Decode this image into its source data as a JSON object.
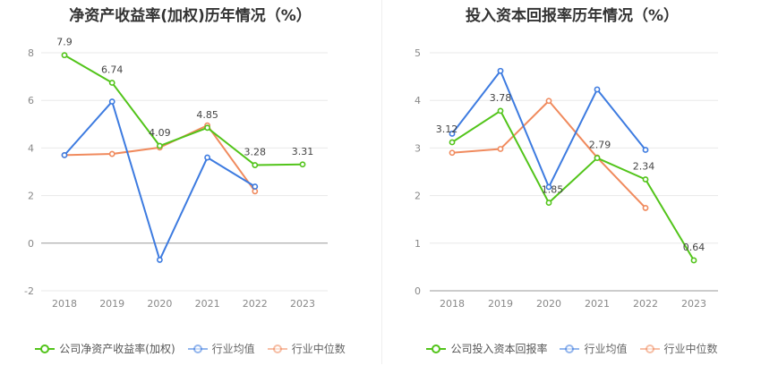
{
  "chart_data": [
    {
      "type": "line",
      "title": "净资产收益率(加权)历年情况（%）",
      "categories": [
        "2018",
        "2019",
        "2020",
        "2021",
        "2022",
        "2023"
      ],
      "ylim": [
        -2,
        8
      ],
      "yticks": [
        -2,
        0,
        2,
        4,
        6,
        8
      ],
      "grid": true,
      "legend": "bottom",
      "series": [
        {
          "name": "公司净资产收益率(加权)",
          "color": "#52c41a",
          "values": [
            7.9,
            6.74,
            4.09,
            4.85,
            3.28,
            3.31
          ],
          "labels": [
            "7.9",
            "6.74",
            "4.09",
            "4.85",
            "3.28",
            "3.31"
          ]
        },
        {
          "name": "行业均值",
          "color": "#3d7be0",
          "values": [
            3.7,
            5.95,
            -0.7,
            3.6,
            2.38,
            null
          ]
        },
        {
          "name": "行业中位数",
          "color": "#f08a5d",
          "values": [
            3.7,
            3.75,
            4.02,
            4.95,
            2.18,
            null
          ]
        }
      ]
    },
    {
      "type": "line",
      "title": "投入资本回报率历年情况（%）",
      "categories": [
        "2018",
        "2019",
        "2020",
        "2021",
        "2022",
        "2023"
      ],
      "ylim": [
        0,
        5
      ],
      "yticks": [
        0,
        1,
        2,
        3,
        4,
        5
      ],
      "grid": true,
      "legend": "bottom",
      "series": [
        {
          "name": "公司投入资本回报率",
          "color": "#52c41a",
          "values": [
            3.12,
            3.78,
            1.85,
            2.79,
            2.34,
            0.64
          ],
          "labels": [
            "3.12",
            "3.78",
            "1.85",
            "2.79",
            "2.34",
            "0.64"
          ]
        },
        {
          "name": "行业均值",
          "color": "#3d7be0",
          "values": [
            3.3,
            4.62,
            2.18,
            4.23,
            2.96,
            null
          ]
        },
        {
          "name": "行业中位数",
          "color": "#f08a5d",
          "values": [
            2.9,
            2.98,
            3.99,
            2.8,
            1.74,
            null
          ]
        }
      ]
    }
  ]
}
